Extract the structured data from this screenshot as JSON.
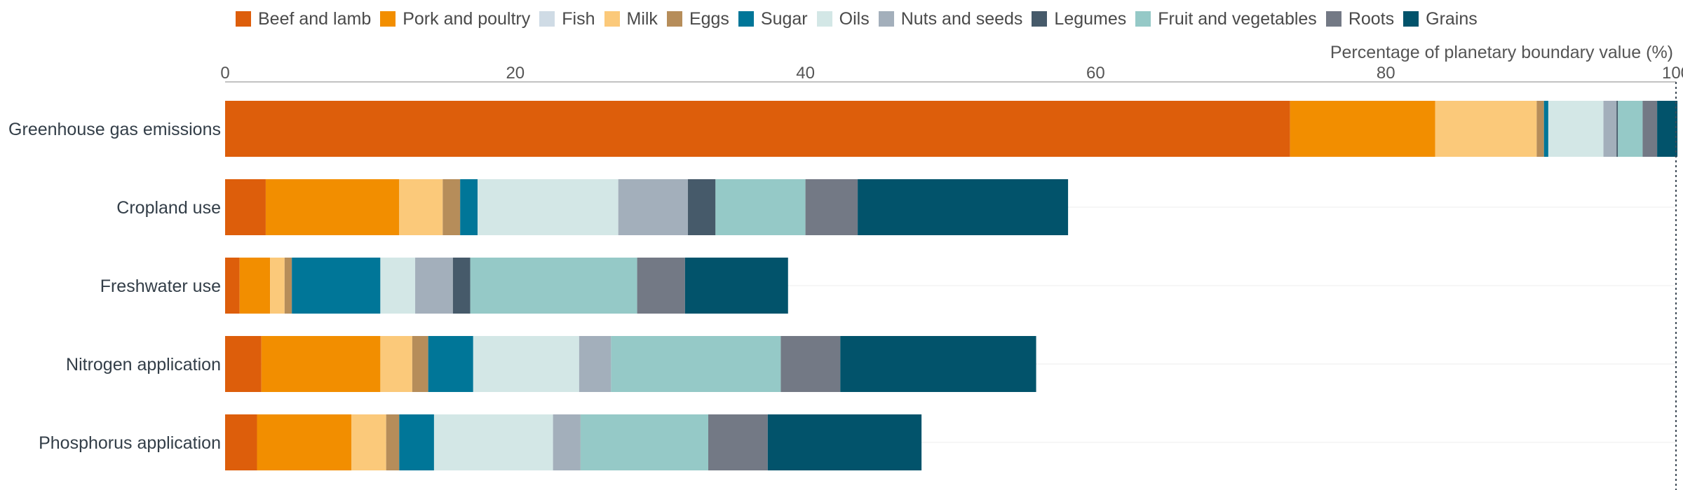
{
  "chart_data": {
    "type": "bar",
    "orientation": "horizontal",
    "stacked": true,
    "title": "",
    "xlabel": "Percentage of planetary boundary value (%)",
    "ylabel": "",
    "xlim": [
      0,
      100
    ],
    "xticks": [
      "0",
      "20",
      "40",
      "60",
      "80",
      "100"
    ],
    "grid": true,
    "legend_position": "top",
    "reference_line": 100,
    "categories": [
      "Greenhouse gas emissions",
      "Cropland use",
      "Freshwater use",
      "Nitrogen application",
      "Phosphorus application"
    ],
    "series": [
      {
        "name": "Beef and lamb",
        "color": "#dd5e0b",
        "values": [
          73.4,
          2.8,
          1.0,
          2.5,
          2.2
        ]
      },
      {
        "name": "Pork and poultry",
        "color": "#f28e00",
        "values": [
          10.0,
          9.2,
          2.1,
          8.2,
          6.5
        ]
      },
      {
        "name": "Fish",
        "color": "#cfdbe5",
        "values": [
          0.0,
          0.0,
          0.0,
          0.0,
          0.0
        ]
      },
      {
        "name": "Milk",
        "color": "#fbc97a",
        "values": [
          7.0,
          3.0,
          1.0,
          2.2,
          2.4
        ]
      },
      {
        "name": "Eggs",
        "color": "#b68d5a",
        "values": [
          0.5,
          1.2,
          0.5,
          1.1,
          0.9
        ]
      },
      {
        "name": "Sugar",
        "color": "#007698",
        "values": [
          0.3,
          1.2,
          6.1,
          3.1,
          2.4
        ]
      },
      {
        "name": "Oils",
        "color": "#d3e7e6",
        "values": [
          3.8,
          9.7,
          2.4,
          7.3,
          8.2
        ]
      },
      {
        "name": "Nuts and seeds",
        "color": "#a3afbb",
        "values": [
          0.9,
          4.8,
          2.6,
          2.2,
          1.9
        ]
      },
      {
        "name": "Legumes",
        "color": "#465a6a",
        "values": [
          0.1,
          1.9,
          1.2,
          0.0,
          0.0
        ]
      },
      {
        "name": "Fruit and vegetables",
        "color": "#95c9c7",
        "values": [
          1.7,
          6.2,
          11.5,
          11.7,
          8.8
        ]
      },
      {
        "name": "Roots",
        "color": "#737985",
        "values": [
          1.0,
          3.6,
          3.3,
          4.1,
          4.1
        ]
      },
      {
        "name": "Grains",
        "color": "#02536b",
        "values": [
          1.4,
          14.5,
          7.1,
          13.5,
          10.6
        ]
      }
    ]
  }
}
